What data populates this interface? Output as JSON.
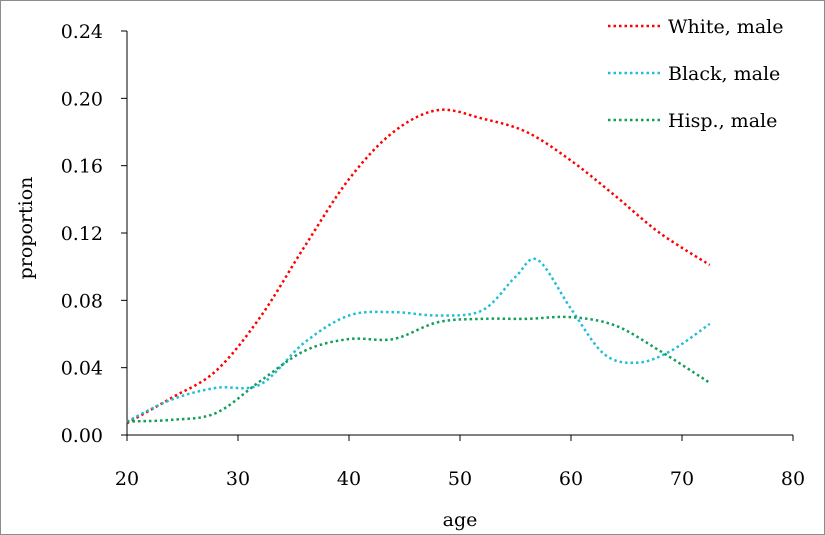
{
  "chart_data": {
    "type": "line",
    "title": "",
    "xlabel": "age",
    "ylabel": "proportion",
    "xlim": [
      20,
      80
    ],
    "ylim": [
      0.0,
      0.24
    ],
    "x_ticks": [
      {
        "value": 20,
        "label": "20"
      },
      {
        "value": 30,
        "label": "30"
      },
      {
        "value": 40,
        "label": "40"
      },
      {
        "value": 50,
        "label": "50"
      },
      {
        "value": 60,
        "label": "60"
      },
      {
        "value": 70,
        "label": "70"
      },
      {
        "value": 80,
        "label": "80"
      }
    ],
    "y_ticks": [
      {
        "value": 0.0,
        "label": "0.00"
      },
      {
        "value": 0.04,
        "label": "0.04"
      },
      {
        "value": 0.08,
        "label": "0.08"
      },
      {
        "value": 0.12,
        "label": "0.12"
      },
      {
        "value": 0.16,
        "label": "0.16"
      },
      {
        "value": 0.2,
        "label": "0.20"
      },
      {
        "value": 0.24,
        "label": "0.24"
      }
    ],
    "grid": false,
    "legend_position": "top-right",
    "series": [
      {
        "name": "White, male",
        "color": "#ff0000",
        "x": [
          20,
          24,
          28,
          32,
          36,
          40,
          44,
          48,
          52,
          56,
          60,
          64,
          68,
          72.5
        ],
        "y": [
          0.007,
          0.022,
          0.038,
          0.07,
          0.112,
          0.152,
          0.18,
          0.193,
          0.188,
          0.18,
          0.163,
          0.142,
          0.12,
          0.101
        ]
      },
      {
        "name": "Black, male",
        "color": "#1ebfd6",
        "x": [
          20,
          24,
          28,
          32,
          36,
          40,
          44,
          48,
          52,
          55,
          57,
          60,
          63,
          66,
          69,
          72.5
        ],
        "y": [
          0.008,
          0.021,
          0.028,
          0.03,
          0.055,
          0.071,
          0.073,
          0.071,
          0.074,
          0.094,
          0.104,
          0.075,
          0.048,
          0.043,
          0.05,
          0.066
        ]
      },
      {
        "name": "Hisp., male",
        "color": "#129e5a",
        "x": [
          20,
          24,
          28,
          32,
          36,
          40,
          44,
          48,
          52,
          56,
          60,
          64,
          68,
          72.5
        ],
        "y": [
          0.008,
          0.009,
          0.013,
          0.032,
          0.05,
          0.057,
          0.057,
          0.067,
          0.069,
          0.069,
          0.07,
          0.065,
          0.05,
          0.031
        ]
      }
    ]
  }
}
